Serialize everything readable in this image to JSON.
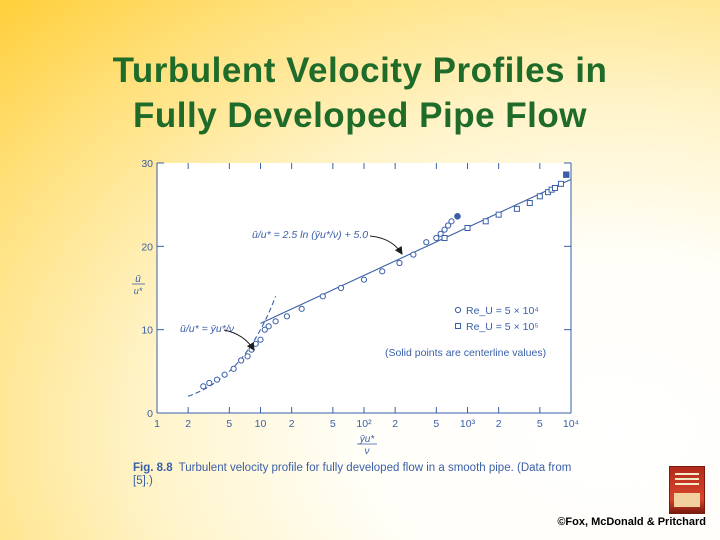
{
  "slide": {
    "title_line1": "Turbulent Velocity Profiles in",
    "title_line2": "Fully Developed Pipe Flow"
  },
  "caption": {
    "label": "Fig. 8.8",
    "text": "Turbulent velocity profile for fully developed flow in a smooth pipe. (Data from [5].)"
  },
  "copyright": "©Fox, McDonald & Pritchard",
  "colors": {
    "title": "#1f6b2a",
    "figure": "#3a5fa8",
    "background_edge": "#ffcf3a"
  },
  "chart_data": {
    "type": "scatter",
    "x_scale": "log",
    "xlim": [
      1,
      10000
    ],
    "ylim": [
      0,
      30
    ],
    "y_ticks": [
      "0",
      "10",
      "20",
      "30"
    ],
    "x_ticks": [
      {
        "value": 1,
        "label": "1"
      },
      {
        "value": 2,
        "label": "2"
      },
      {
        "value": 5,
        "label": "5"
      },
      {
        "value": 10,
        "label": "10"
      },
      {
        "value": 20,
        "label": "2"
      },
      {
        "value": 50,
        "label": "5"
      },
      {
        "value": 100,
        "label": "10²"
      },
      {
        "value": 200,
        "label": "2"
      },
      {
        "value": 500,
        "label": "5"
      },
      {
        "value": 1000,
        "label": "10³"
      },
      {
        "value": 2000,
        "label": "2"
      },
      {
        "value": 5000,
        "label": "5"
      },
      {
        "value": 10000,
        "label": "10⁴"
      }
    ],
    "ylabel_num": "ū",
    "ylabel_den": "u*",
    "xlabel_num": "ȳu*",
    "xlabel_den": "ν",
    "annotations": {
      "log_law": "ū/u* = 2.5 ln (ȳu*/ν) + 5.0",
      "linear_law": "ū/u* = ȳu*/ν",
      "note": "(Solid points are centerline values)"
    },
    "series": [
      {
        "name": "Re_U = 5 × 10⁴",
        "marker": "circle",
        "x": [
          2.8,
          3.2,
          3.8,
          4.5,
          5.5,
          6.5,
          7.5,
          8.2,
          9.0,
          10,
          11,
          12,
          14,
          18,
          25,
          40,
          60,
          100,
          150,
          220,
          300,
          400,
          500,
          550,
          600,
          650,
          700
        ],
        "y": [
          3.2,
          3.6,
          4.0,
          4.6,
          5.3,
          6.3,
          6.8,
          7.6,
          8.3,
          8.8,
          10.0,
          10.4,
          11.0,
          11.6,
          12.5,
          14.0,
          15.0,
          16.0,
          17.0,
          18.0,
          19.0,
          20.5,
          21.0,
          21.5,
          22.0,
          22.5,
          23.0
        ],
        "centerline": {
          "x": 800,
          "y": 23.6
        }
      },
      {
        "name": "Re_U = 5 × 10⁵",
        "marker": "square",
        "x": [
          600,
          1000,
          1500,
          2000,
          3000,
          4000,
          5000,
          6000,
          6500,
          7000,
          8000
        ],
        "y": [
          21.0,
          22.2,
          23.0,
          23.8,
          24.5,
          25.2,
          26.0,
          26.5,
          26.8,
          27.0,
          27.5
        ],
        "centerline": {
          "x": 9000,
          "y": 28.6
        }
      }
    ]
  }
}
